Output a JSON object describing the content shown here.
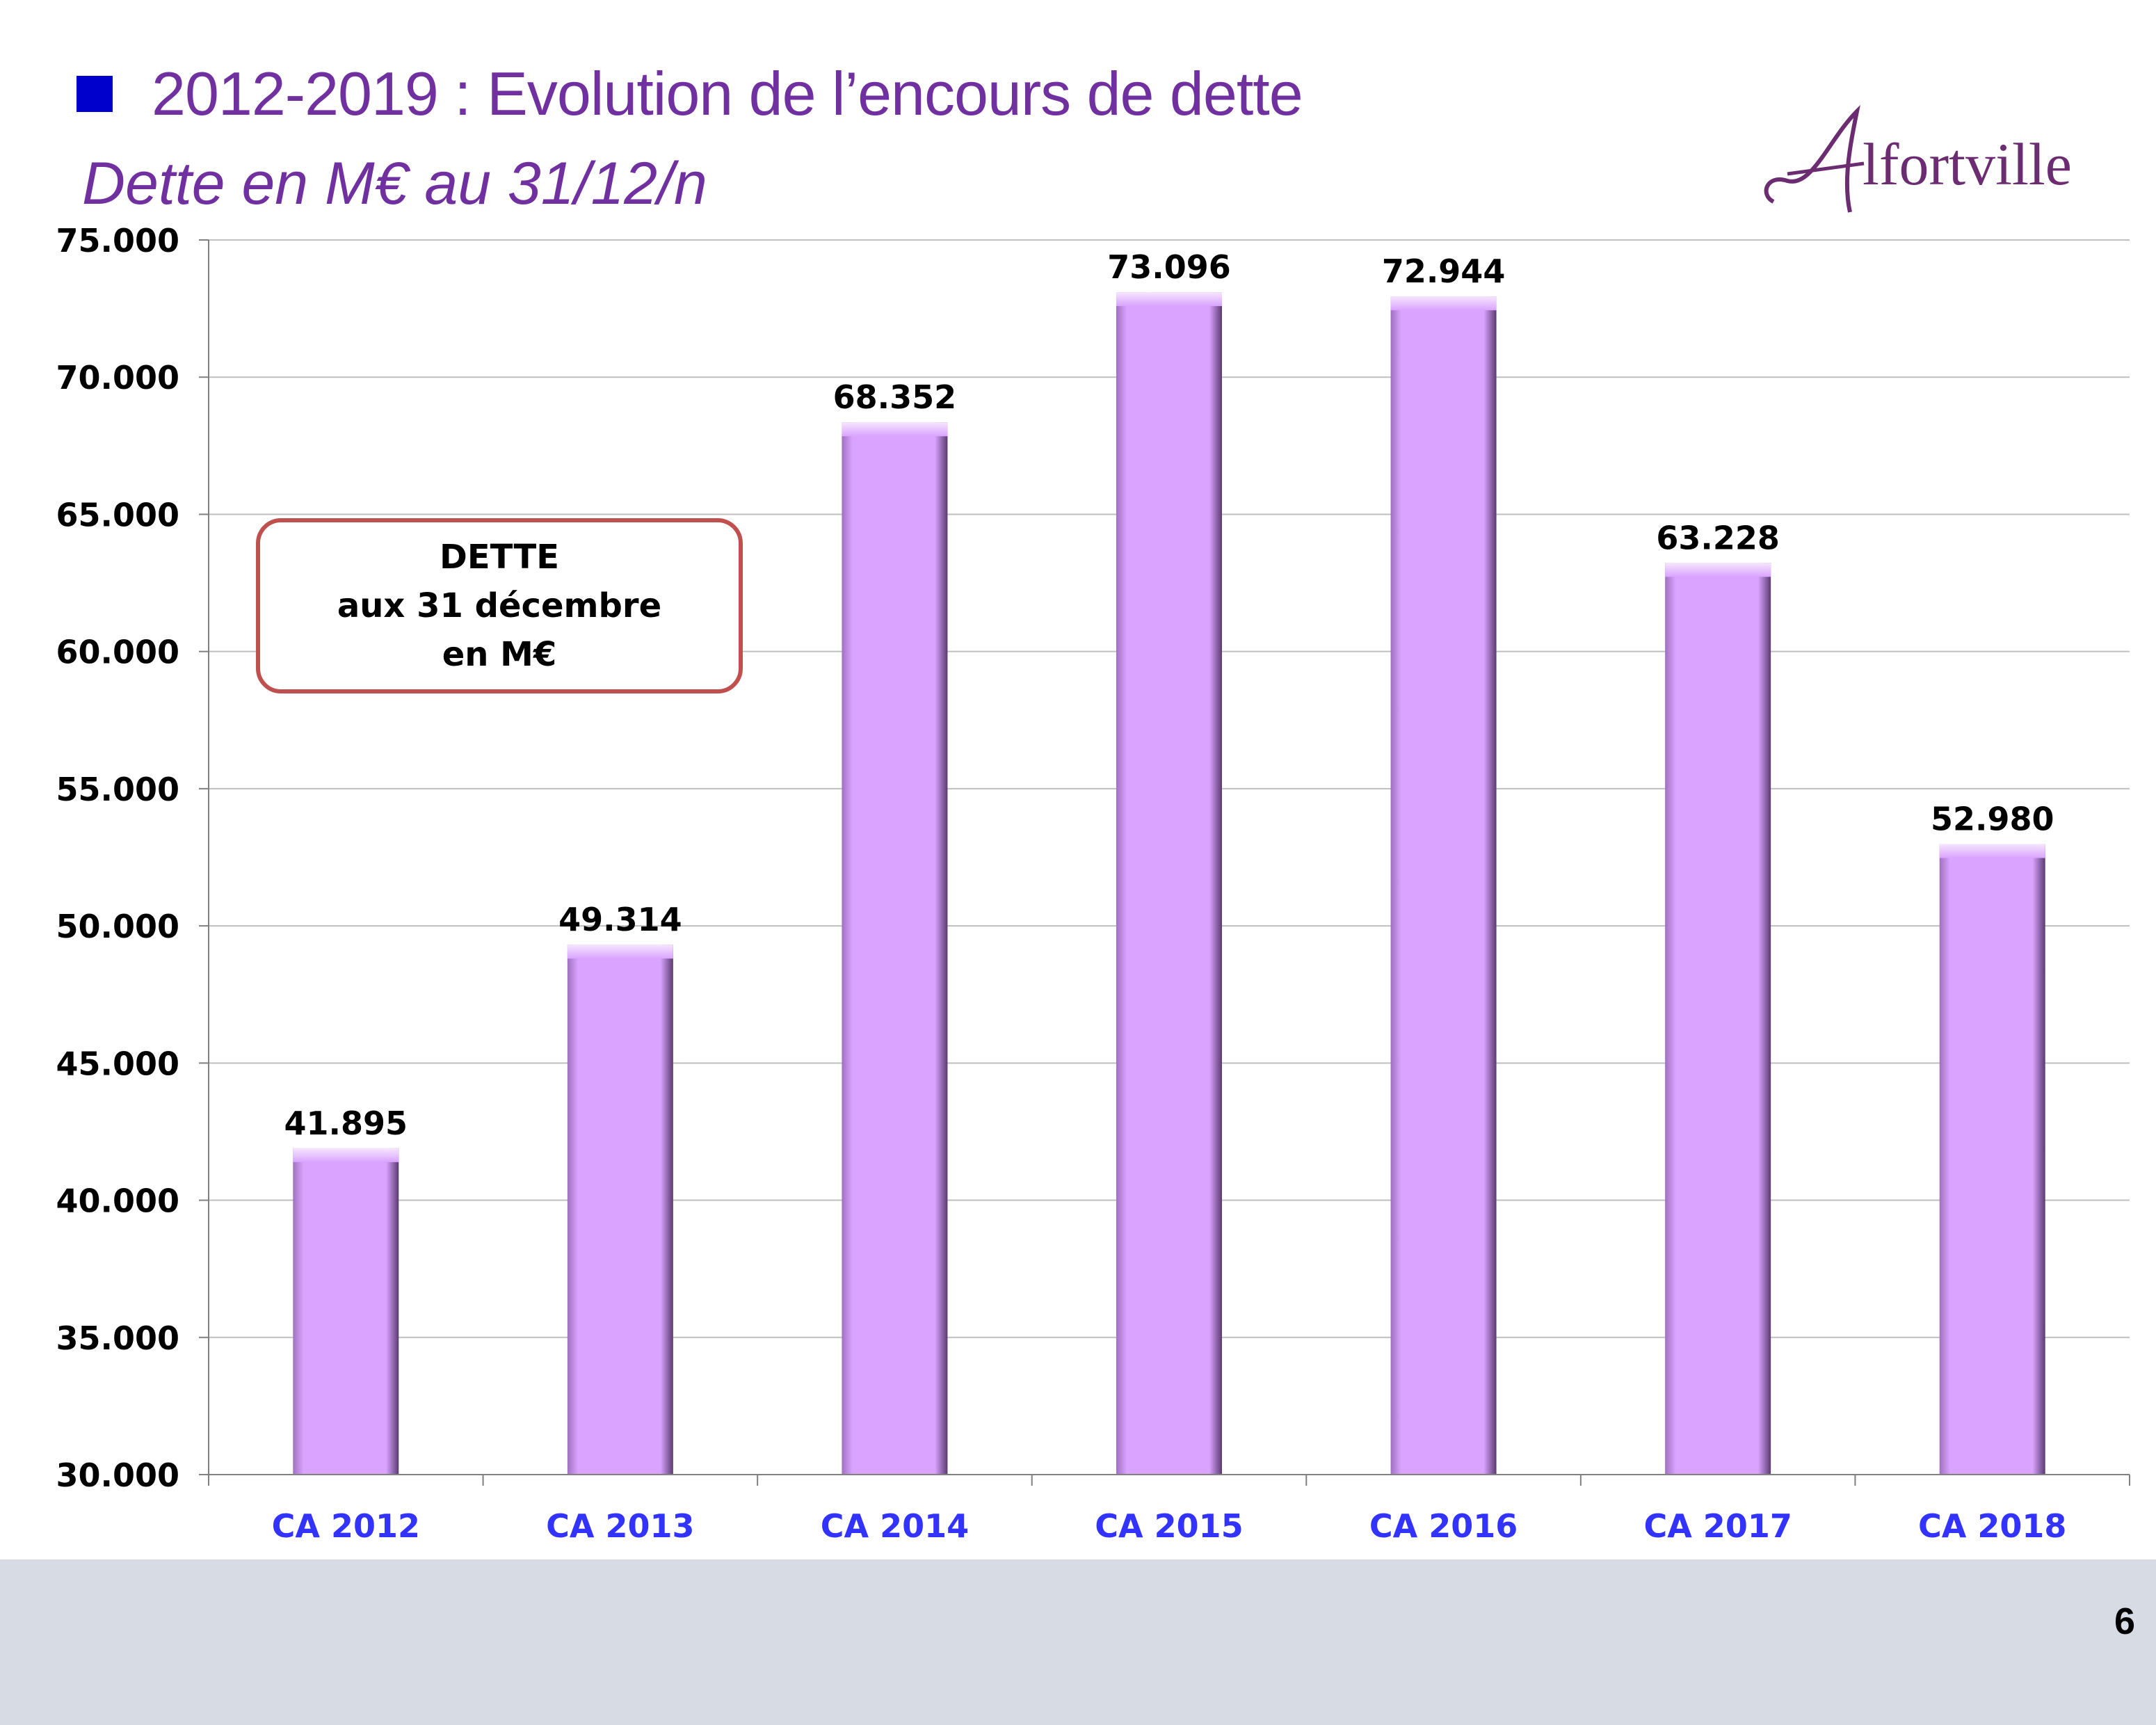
{
  "header": {
    "title": "2012-2019 : Evolution de l’encours  de dette",
    "subtitle": "Dette en M€ au 31/12/n",
    "logo_text": "Alfortville"
  },
  "callout": {
    "line1": "DETTE",
    "line2": "aux 31 décembre",
    "line3": "en M€"
  },
  "footer": {
    "page_number": "6"
  },
  "colors": {
    "accent": "#7030a0",
    "bullet": "#0000cc",
    "bar": "#d9a3ff",
    "category_label": "#3333ff",
    "callout_border": "#c0504d",
    "footer_band": "#d7dbe4"
  },
  "chart_data": {
    "type": "bar",
    "title": "",
    "xlabel": "",
    "ylabel": "",
    "categories": [
      "CA 2012",
      "CA 2013",
      "CA 2014",
      "CA 2015",
      "CA 2016",
      "CA 2017",
      "CA 2018"
    ],
    "values": [
      41.895,
      49.314,
      68.352,
      73.096,
      72.944,
      63.228,
      52.98
    ],
    "value_labels": [
      "41.895",
      "49.314",
      "68.352",
      "73.096",
      "72.944",
      "63.228",
      "52.980"
    ],
    "ylim": [
      30,
      75
    ],
    "yticks": [
      30,
      35,
      40,
      45,
      50,
      55,
      60,
      65,
      70,
      75
    ],
    "ytick_labels": [
      "30.000",
      "35.000",
      "40.000",
      "45.000",
      "50.000",
      "55.000",
      "60.000",
      "65.000",
      "70.000",
      "75.000"
    ],
    "grid": true,
    "legend": "none"
  }
}
